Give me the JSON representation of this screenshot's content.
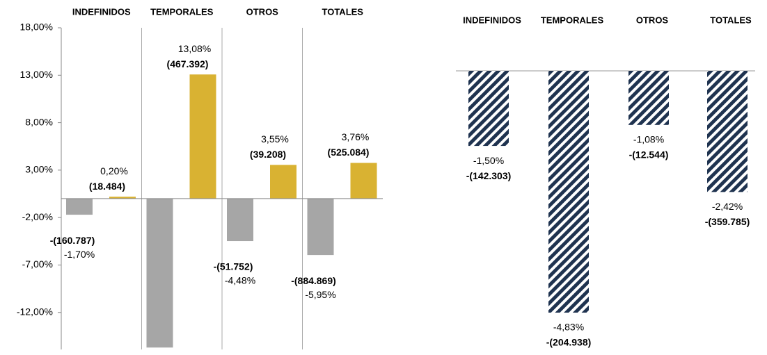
{
  "chart_data": [
    {
      "type": "bar",
      "categories": [
        "INDEFINIDOS",
        "TEMPORALES",
        "OTROS",
        "TOTALES"
      ],
      "series": [
        {
          "color": "#a6a6a6",
          "values": [
            -1.7,
            -15.7,
            -4.48,
            -5.95
          ],
          "value_labels": [
            "-1,70%",
            null,
            "-4,48%",
            "-5,95%"
          ],
          "count_labels": [
            "-(160.787)",
            null,
            "-(51.752)",
            "-(884.869)"
          ]
        },
        {
          "color": "#d9b232",
          "values": [
            0.2,
            13.08,
            3.55,
            3.76
          ],
          "value_labels": [
            "0,20%",
            "13,08%",
            "3,55%",
            "3,76%"
          ],
          "count_labels": [
            "(18.484)",
            "(467.392)",
            "(39.208)",
            "(525.084)"
          ]
        }
      ],
      "ylim": [
        -15.9,
        18
      ],
      "yticks": [
        {
          "value": 18,
          "label": "18,00%"
        },
        {
          "value": 13,
          "label": "13,00%"
        },
        {
          "value": 8,
          "label": "8,00%"
        },
        {
          "value": 3,
          "label": "3,00%"
        },
        {
          "value": -2,
          "label": "-2,00%"
        },
        {
          "value": -7,
          "label": "-7,00%"
        },
        {
          "value": -12,
          "label": "-12,00%"
        }
      ]
    },
    {
      "type": "bar",
      "categories": [
        "INDEFINIDOS",
        "TEMPORALES",
        "OTROS",
        "TOTALES"
      ],
      "series": [
        {
          "color": "#1f3350",
          "values": [
            -1.5,
            -4.83,
            -1.08,
            -2.42
          ],
          "value_labels": [
            "-1,50%",
            "-4,83%",
            "-1,08%",
            "-2,42%"
          ],
          "count_labels": [
            "-(142.303)",
            "-(204.938)",
            "-(12.544)",
            "-(359.785)"
          ]
        }
      ]
    }
  ]
}
